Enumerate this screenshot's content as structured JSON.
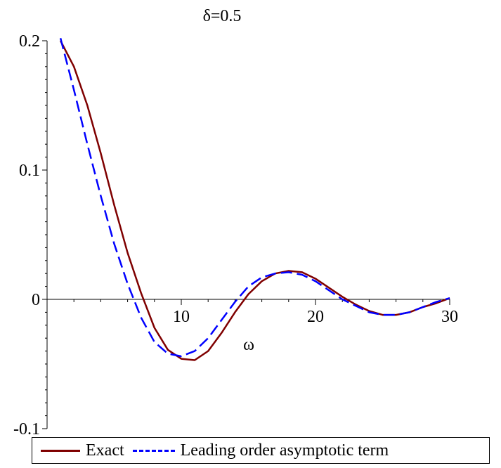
{
  "chart_data": {
    "type": "line",
    "title": "δ=0.5",
    "xlabel": "ω",
    "ylabel": "",
    "xlim": [
      0,
      30
    ],
    "ylim": [
      -0.1,
      0.2
    ],
    "x_ticks": [
      {
        "value": 10,
        "label": "10"
      },
      {
        "value": 20,
        "label": "20"
      },
      {
        "value": 30,
        "label": "30"
      }
    ],
    "y_ticks": [
      {
        "value": 0.2,
        "label": "0.2"
      },
      {
        "value": 0.1,
        "label": "0.1"
      },
      {
        "value": 0,
        "label": "0"
      },
      {
        "value": -0.1,
        "label": "-0.1"
      }
    ],
    "grid": false,
    "legend_position": "bottom",
    "series": [
      {
        "name": "Exact",
        "color": "#7f0000",
        "dash": "solid",
        "points": [
          [
            1.0,
            0.2
          ],
          [
            2.0,
            0.18
          ],
          [
            3.0,
            0.15
          ],
          [
            4.0,
            0.113
          ],
          [
            5.0,
            0.073
          ],
          [
            6.0,
            0.036
          ],
          [
            7.0,
            0.005
          ],
          [
            8.0,
            -0.022
          ],
          [
            9.0,
            -0.039
          ],
          [
            10.0,
            -0.046
          ],
          [
            11.0,
            -0.047
          ],
          [
            12.0,
            -0.04
          ],
          [
            13.0,
            -0.026
          ],
          [
            14.0,
            -0.01
          ],
          [
            15.0,
            0.004
          ],
          [
            16.0,
            0.014
          ],
          [
            17.0,
            0.02
          ],
          [
            18.0,
            0.022
          ],
          [
            19.0,
            0.021
          ],
          [
            20.0,
            0.016
          ],
          [
            21.0,
            0.009
          ],
          [
            22.0,
            0.002
          ],
          [
            23.0,
            -0.004
          ],
          [
            24.0,
            -0.009
          ],
          [
            25.0,
            -0.012
          ],
          [
            26.0,
            -0.012
          ],
          [
            27.0,
            -0.01
          ],
          [
            28.0,
            -0.006
          ],
          [
            29.0,
            -0.003
          ],
          [
            30.0,
            0.001
          ]
        ]
      },
      {
        "name": "Leading order asymptotic term",
        "color": "#0000ff",
        "dash": "dashed",
        "points": [
          [
            1.0,
            0.202
          ],
          [
            2.0,
            0.162
          ],
          [
            3.0,
            0.12
          ],
          [
            4.0,
            0.08
          ],
          [
            5.0,
            0.043
          ],
          [
            6.0,
            0.012
          ],
          [
            7.0,
            -0.014
          ],
          [
            8.0,
            -0.033
          ],
          [
            9.0,
            -0.042
          ],
          [
            10.0,
            -0.044
          ],
          [
            11.0,
            -0.04
          ],
          [
            12.0,
            -0.03
          ],
          [
            13.0,
            -0.016
          ],
          [
            14.0,
            -0.002
          ],
          [
            15.0,
            0.01
          ],
          [
            16.0,
            0.017
          ],
          [
            17.0,
            0.02
          ],
          [
            18.0,
            0.021
          ],
          [
            19.0,
            0.019
          ],
          [
            20.0,
            0.014
          ],
          [
            21.0,
            0.007
          ],
          [
            22.0,
            0.0
          ],
          [
            23.0,
            -0.005
          ],
          [
            24.0,
            -0.01
          ],
          [
            25.0,
            -0.012
          ],
          [
            26.0,
            -0.012
          ],
          [
            27.0,
            -0.01
          ],
          [
            28.0,
            -0.006
          ],
          [
            29.0,
            -0.002
          ],
          [
            30.0,
            0.001
          ]
        ]
      }
    ]
  }
}
